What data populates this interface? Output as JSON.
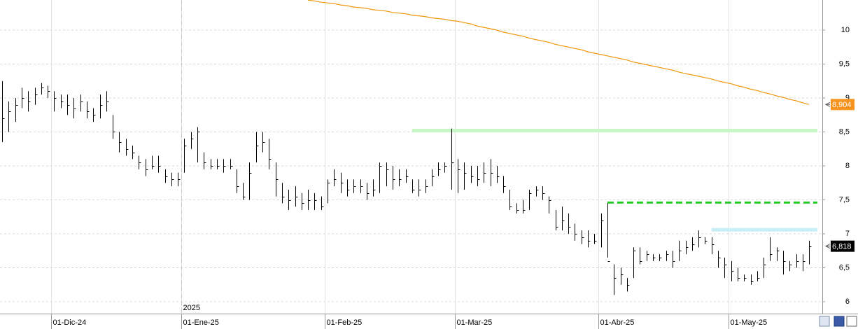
{
  "chart_data": {
    "type": "ohlc",
    "categories": [
      null,
      null,
      null,
      null,
      null,
      null,
      null,
      null,
      "01-Dic-24",
      null,
      null,
      null,
      null,
      null,
      null,
      null,
      null,
      null,
      null,
      null,
      null,
      null,
      null,
      null,
      null,
      null,
      null,
      null,
      "01-Ene-25",
      null,
      null,
      null,
      null,
      null,
      null,
      null,
      null,
      null,
      null,
      null,
      null,
      null,
      null,
      null,
      null,
      null,
      null,
      null,
      null,
      null,
      "01-Feb-25",
      null,
      null,
      null,
      null,
      null,
      null,
      null,
      null,
      null,
      null,
      null,
      null,
      null,
      null,
      null,
      null,
      null,
      null,
      null,
      "01-Mar-25",
      null,
      null,
      null,
      null,
      null,
      null,
      null,
      null,
      null,
      null,
      null,
      null,
      null,
      null,
      null,
      null,
      null,
      null,
      null,
      null,
      null,
      "01-Abr-25",
      null,
      null,
      null,
      null,
      null,
      null,
      null,
      null,
      null,
      null,
      null,
      null,
      null,
      null,
      null,
      null,
      null,
      null,
      null,
      "01-May-25",
      null,
      null,
      null,
      null,
      null,
      null,
      null,
      null,
      null,
      null,
      null,
      null
    ],
    "high": [
      9.25,
      8.95,
      9.0,
      9.15,
      9.1,
      9.15,
      9.22,
      9.18,
      9.1,
      9.05,
      9.05,
      9.0,
      9.05,
      8.95,
      8.85,
      9.05,
      9.1,
      8.75,
      8.5,
      8.4,
      8.3,
      8.15,
      8.1,
      8.15,
      8.15,
      7.95,
      7.9,
      7.9,
      8.4,
      8.5,
      8.57,
      8.2,
      8.1,
      8.1,
      8.1,
      8.1,
      7.95,
      7.75,
      8.05,
      8.5,
      8.5,
      8.4,
      8.05,
      7.75,
      7.65,
      7.7,
      7.6,
      7.65,
      7.6,
      7.55,
      7.8,
      7.95,
      7.9,
      7.8,
      7.8,
      7.8,
      7.75,
      7.8,
      8.05,
      8.05,
      8.0,
      7.95,
      7.95,
      7.8,
      7.8,
      7.8,
      7.95,
      8.05,
      8.05,
      8.55,
      8.1,
      8.05,
      8.0,
      8.0,
      8.05,
      8.1,
      8.0,
      7.85,
      7.65,
      7.45,
      7.5,
      7.65,
      7.7,
      7.7,
      7.55,
      7.35,
      7.4,
      7.3,
      7.15,
      7.05,
      7.05,
      7.0,
      7.3,
      7.45,
      6.55,
      6.5,
      6.35,
      6.8,
      6.8,
      6.75,
      6.7,
      6.7,
      6.75,
      6.75,
      6.9,
      6.9,
      6.95,
      7.05,
      6.95,
      6.95,
      6.75,
      6.65,
      6.6,
      6.5,
      6.4,
      6.4,
      6.45,
      6.65,
      6.95,
      6.8,
      6.75,
      6.6,
      6.7,
      6.7,
      6.9
    ],
    "low": [
      8.35,
      8.5,
      8.65,
      8.85,
      8.8,
      8.9,
      9.05,
      9.0,
      8.8,
      8.85,
      8.75,
      8.7,
      8.8,
      8.7,
      8.65,
      8.7,
      8.8,
      8.4,
      8.2,
      8.15,
      8.1,
      7.95,
      7.85,
      7.95,
      7.9,
      7.75,
      7.7,
      7.7,
      7.9,
      8.25,
      8.05,
      7.95,
      7.95,
      7.95,
      7.9,
      7.95,
      7.6,
      7.5,
      7.5,
      8.05,
      8.2,
      7.95,
      7.55,
      7.45,
      7.35,
      7.4,
      7.35,
      7.35,
      7.35,
      7.35,
      7.45,
      7.7,
      7.6,
      7.55,
      7.6,
      7.6,
      7.5,
      7.55,
      7.6,
      7.7,
      7.65,
      7.7,
      7.75,
      7.6,
      7.55,
      7.6,
      7.7,
      7.85,
      7.9,
      7.65,
      7.6,
      7.65,
      7.75,
      7.7,
      7.75,
      7.7,
      7.75,
      7.6,
      7.35,
      7.3,
      7.3,
      7.35,
      7.55,
      7.5,
      7.3,
      7.05,
      7.05,
      7.0,
      6.9,
      6.85,
      6.8,
      6.85,
      6.8,
      6.65,
      6.1,
      6.25,
      6.15,
      6.35,
      6.55,
      6.6,
      6.6,
      6.6,
      6.6,
      6.5,
      6.6,
      6.7,
      6.75,
      6.8,
      6.85,
      6.7,
      6.5,
      6.35,
      6.3,
      6.3,
      6.3,
      6.25,
      6.3,
      6.35,
      6.6,
      6.6,
      6.4,
      6.45,
      6.5,
      6.45,
      6.55
    ],
    "close": [
      8.7,
      8.8,
      8.9,
      9.0,
      8.95,
      9.05,
      9.15,
      9.1,
      9.0,
      8.95,
      8.9,
      8.85,
      8.95,
      8.8,
      8.75,
      8.9,
      8.95,
      8.5,
      8.35,
      8.25,
      8.2,
      8.05,
      7.95,
      8.0,
      8.0,
      7.85,
      7.8,
      7.8,
      8.3,
      8.4,
      8.5,
      8.05,
      8.0,
      8.0,
      8.0,
      8.0,
      7.7,
      7.55,
      7.9,
      8.3,
      8.35,
      8.1,
      7.8,
      7.55,
      7.5,
      7.55,
      7.45,
      7.5,
      7.5,
      7.4,
      7.75,
      7.8,
      7.75,
      7.65,
      7.7,
      7.7,
      7.6,
      7.65,
      8.0,
      7.95,
      7.8,
      7.8,
      7.85,
      7.65,
      7.65,
      7.7,
      7.85,
      7.95,
      8.0,
      8.05,
      7.95,
      7.9,
      7.85,
      7.8,
      7.9,
      7.9,
      7.85,
      7.7,
      7.4,
      7.35,
      7.35,
      7.6,
      7.65,
      7.6,
      7.5,
      7.1,
      7.2,
      7.1,
      7.0,
      6.95,
      6.9,
      6.9,
      7.2,
      6.6,
      6.35,
      6.4,
      6.25,
      6.75,
      6.6,
      6.7,
      6.65,
      6.65,
      6.7,
      6.6,
      6.75,
      6.8,
      6.85,
      6.95,
      6.9,
      6.85,
      6.65,
      6.55,
      6.45,
      6.35,
      6.35,
      6.3,
      6.35,
      6.55,
      6.7,
      6.75,
      6.6,
      6.55,
      6.6,
      6.6,
      6.818
    ],
    "bar_color": "#000000",
    "moving_average": {
      "color": "#f0960a",
      "values": [
        null,
        null,
        null,
        null,
        null,
        null,
        null,
        null,
        null,
        null,
        null,
        null,
        null,
        null,
        null,
        null,
        null,
        null,
        null,
        null,
        null,
        null,
        null,
        null,
        null,
        null,
        null,
        null,
        null,
        null,
        null,
        null,
        null,
        null,
        null,
        null,
        null,
        null,
        null,
        null,
        null,
        null,
        null,
        null,
        null,
        null,
        null,
        10.44,
        10.43,
        10.41,
        10.4,
        10.39,
        10.37,
        10.36,
        10.34,
        10.33,
        10.32,
        10.3,
        10.29,
        10.28,
        10.26,
        10.25,
        10.24,
        10.22,
        10.21,
        10.2,
        10.18,
        10.17,
        10.16,
        10.14,
        10.13,
        10.11,
        10.09,
        10.06,
        10.04,
        10.02,
        10.0,
        9.97,
        9.95,
        9.93,
        9.91,
        9.88,
        9.86,
        9.84,
        9.82,
        9.79,
        9.77,
        9.75,
        9.73,
        9.71,
        9.68,
        9.66,
        9.64,
        9.62,
        9.6,
        9.58,
        9.56,
        9.53,
        9.51,
        9.49,
        9.47,
        9.45,
        9.43,
        9.41,
        9.38,
        9.36,
        9.34,
        9.32,
        9.3,
        9.28,
        9.25,
        9.23,
        9.21,
        9.18,
        9.16,
        9.13,
        9.11,
        9.08,
        9.06,
        9.03,
        9.01,
        8.98,
        8.96,
        8.93,
        8.904
      ]
    },
    "levels": [
      {
        "value": 8.52,
        "start": 63,
        "color": "#c6f5c6",
        "style": "solid"
      },
      {
        "value": 7.46,
        "start": 93,
        "color": "#22cc22",
        "style": "dashed"
      },
      {
        "value": 7.06,
        "start": 109,
        "color": "#c8eef8",
        "style": "solid"
      }
    ],
    "last_labels": [
      {
        "value": 8.904,
        "label": "8,904",
        "color": "#f7931e"
      },
      {
        "value": 6.818,
        "label": "6,818",
        "color": "#000000"
      }
    ],
    "annotation": {
      "label": "2025",
      "at": 28
    },
    "ylim": [
      5.825,
      10.443
    ],
    "yticks": [
      6,
      {
        "value": 6.5,
        "label": "6,5"
      },
      7,
      {
        "value": 7.5,
        "label": "7,5"
      },
      8,
      {
        "value": 8.5,
        "label": "8,5"
      },
      9,
      {
        "value": 9.5,
        "label": "9,5"
      },
      10
    ],
    "grid": true
  }
}
